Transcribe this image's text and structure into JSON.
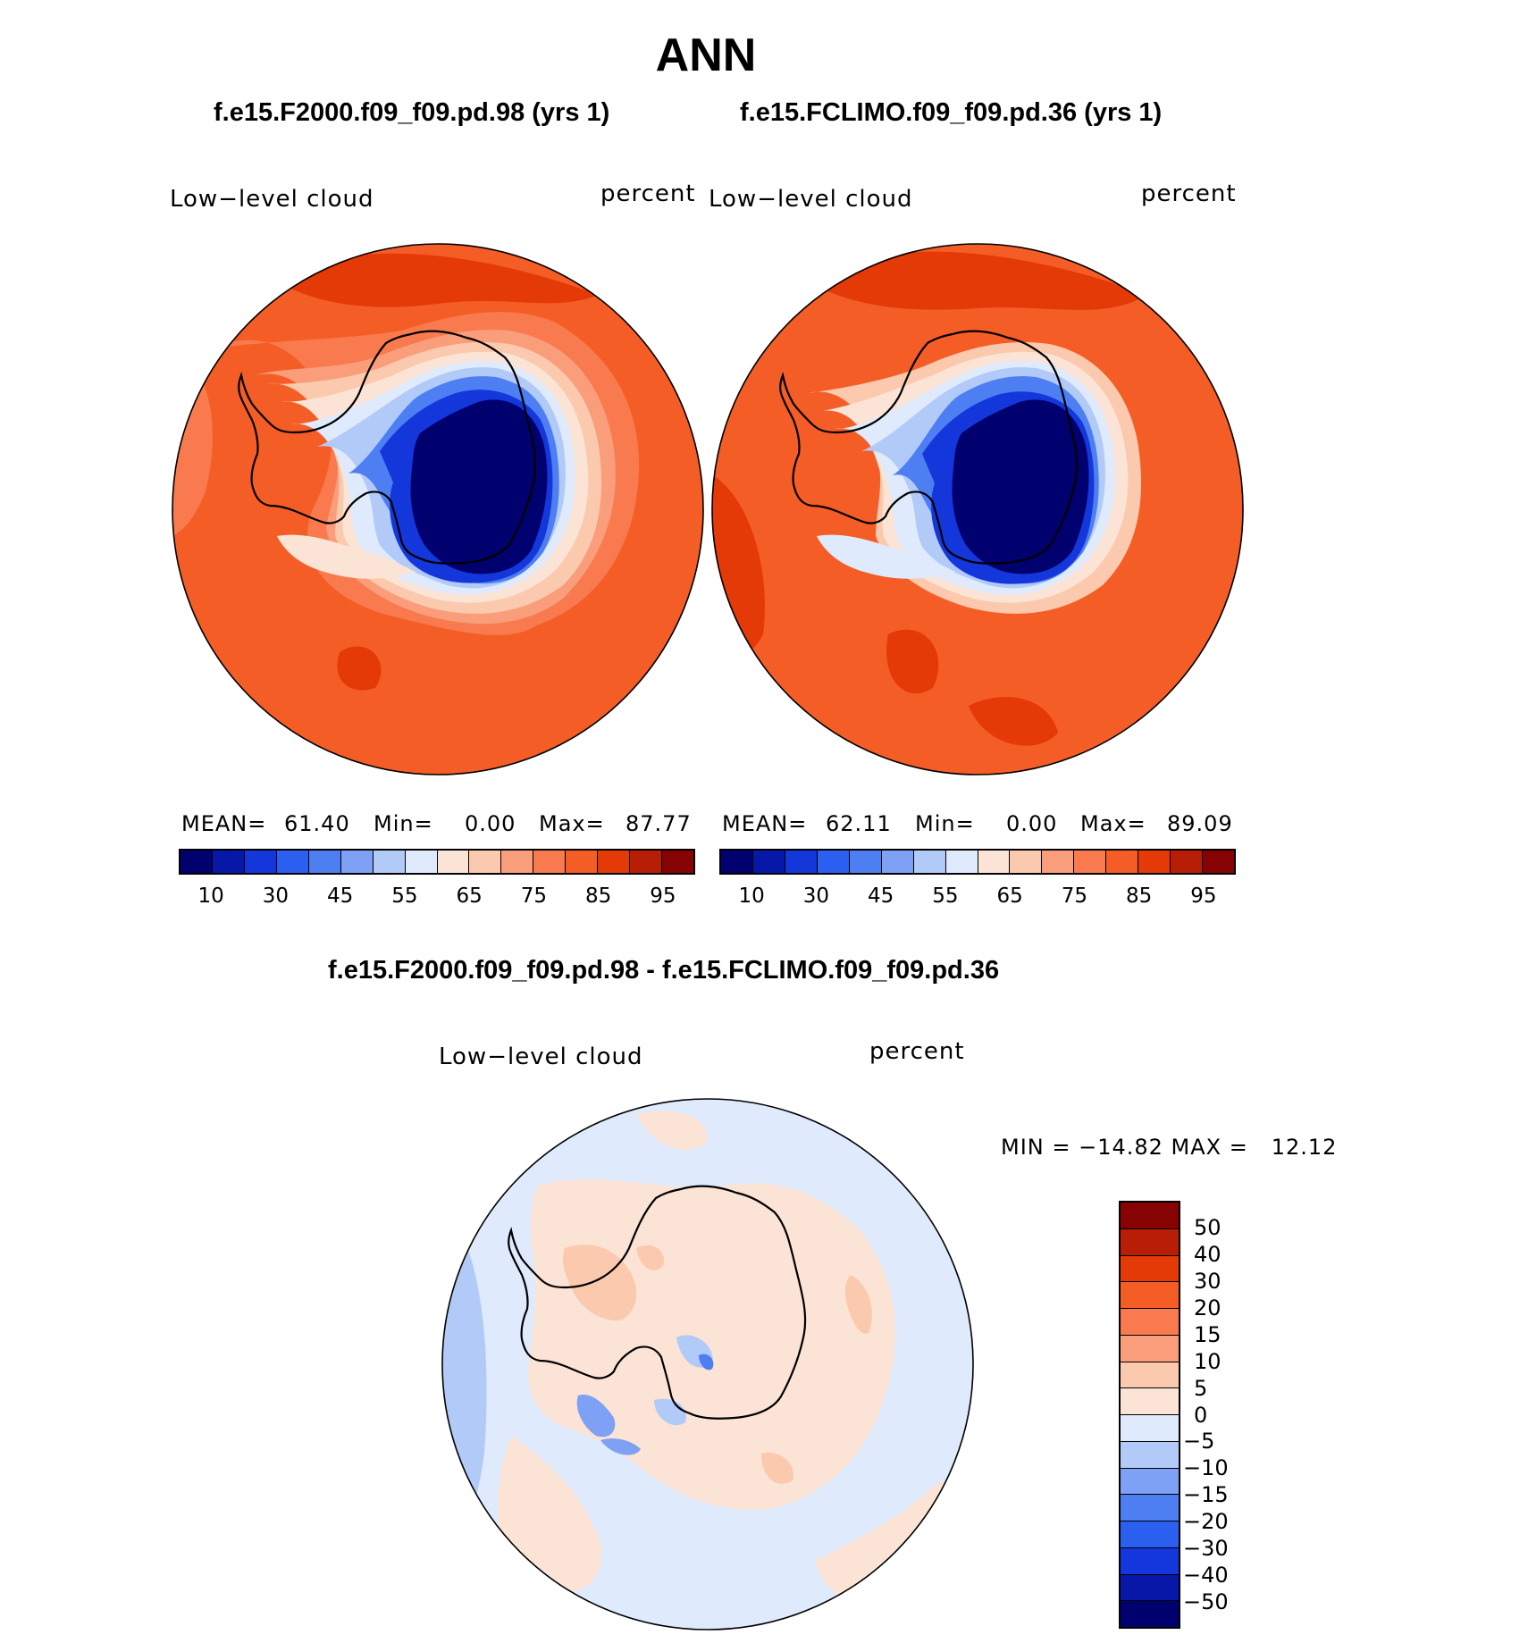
{
  "title": "ANN",
  "panel_left": {
    "case": "f.e15.F2000.f09_f09.pd.98 (yrs 1)",
    "variable": "Low−level cloud",
    "units": "percent",
    "stats": {
      "mean_label": "MEAN=",
      "mean": "61.40",
      "min_label": "Min=",
      "min": "0.00",
      "max_label": "Max=",
      "max": "87.77"
    }
  },
  "panel_right": {
    "case": "f.e15.FCLIMO.f09_f09.pd.36 (yrs 1)",
    "variable": "Low−level cloud",
    "units": "percent",
    "stats": {
      "mean_label": "MEAN=",
      "mean": "62.11",
      "min_label": "Min=",
      "min": "0.00",
      "max_label": "Max=",
      "max": "89.09"
    }
  },
  "panel_diff": {
    "case": "f.e15.F2000.f09_f09.pd.98 - f.e15.FCLIMO.f09_f09.pd.36",
    "variable": "Low−level cloud",
    "units": "percent",
    "minmax": "MIN = −14.82 MAX =   12.12"
  },
  "colorbar_abs": {
    "colors": [
      "#00006e",
      "#0718a8",
      "#1437dc",
      "#2b5ff0",
      "#4d7ef2",
      "#7ea1f5",
      "#b2caf8",
      "#dfeafc",
      "#fbe4d6",
      "#fbc9ad",
      "#f99d7b",
      "#f87a4e",
      "#f55d27",
      "#e33a08",
      "#b81e05",
      "#860203"
    ],
    "tick_labels": [
      "10",
      "30",
      "45",
      "55",
      "65",
      "75",
      "85",
      "95"
    ]
  },
  "colorbar_diff": {
    "colors": [
      "#860203",
      "#b81e05",
      "#e33a08",
      "#f55d27",
      "#f87a4e",
      "#f99d7b",
      "#fbc9ad",
      "#fbe4d6",
      "#dfeafc",
      "#b2caf8",
      "#7ea1f5",
      "#4d7ef2",
      "#2b5ff0",
      "#1437dc",
      "#0718a8",
      "#00006e"
    ],
    "tick_labels": [
      "50",
      "40",
      "30",
      "20",
      "15",
      "10",
      "5",
      "0",
      "−5",
      "−10",
      "−15",
      "−20",
      "−30",
      "−40",
      "−50"
    ]
  }
}
